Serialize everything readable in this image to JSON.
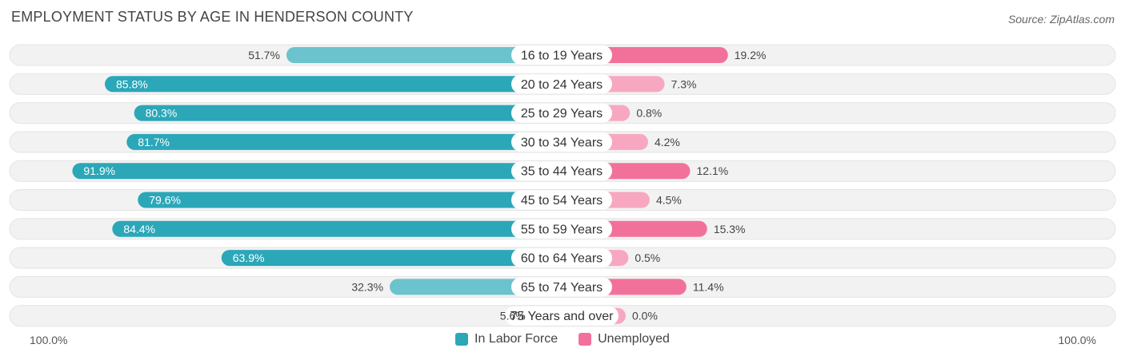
{
  "title": "EMPLOYMENT STATUS BY AGE IN HENDERSON COUNTY",
  "source": "Source: ZipAtlas.com",
  "colors": {
    "in_labor_force_dark": "#2ba7b8",
    "in_labor_force_light": "#6bc3cd",
    "unemployed_dark": "#f2719a",
    "unemployed_light": "#f7a8c0",
    "row_bg": "#f2f2f2"
  },
  "legend": {
    "in_labor_force": "In Labor Force",
    "unemployed": "Unemployed"
  },
  "axis": {
    "left_label": "100.0%",
    "right_label": "100.0%"
  },
  "chart_data": {
    "type": "bar",
    "orientation": "horizontal-diverging",
    "title": "EMPLOYMENT STATUS BY AGE IN HENDERSON COUNTY",
    "categories": [
      "16 to 19 Years",
      "20 to 24 Years",
      "25 to 29 Years",
      "30 to 34 Years",
      "35 to 44 Years",
      "45 to 54 Years",
      "55 to 59 Years",
      "60 to 64 Years",
      "65 to 74 Years",
      "75 Years and over"
    ],
    "series": [
      {
        "name": "In Labor Force",
        "values": [
          51.7,
          85.8,
          80.3,
          81.7,
          91.9,
          79.6,
          84.4,
          63.9,
          32.3,
          5.6
        ],
        "labels": [
          "51.7%",
          "85.8%",
          "80.3%",
          "81.7%",
          "91.9%",
          "79.6%",
          "84.4%",
          "63.9%",
          "32.3%",
          "5.6%"
        ]
      },
      {
        "name": "Unemployed",
        "values": [
          19.2,
          7.3,
          0.8,
          4.2,
          12.1,
          4.5,
          15.3,
          0.5,
          11.4,
          0.0
        ],
        "labels": [
          "19.2%",
          "7.3%",
          "0.8%",
          "4.2%",
          "12.1%",
          "4.5%",
          "15.3%",
          "0.5%",
          "11.4%",
          "0.0%"
        ]
      }
    ],
    "xlim": [
      -100,
      100
    ],
    "legend_position": "bottom-center"
  }
}
